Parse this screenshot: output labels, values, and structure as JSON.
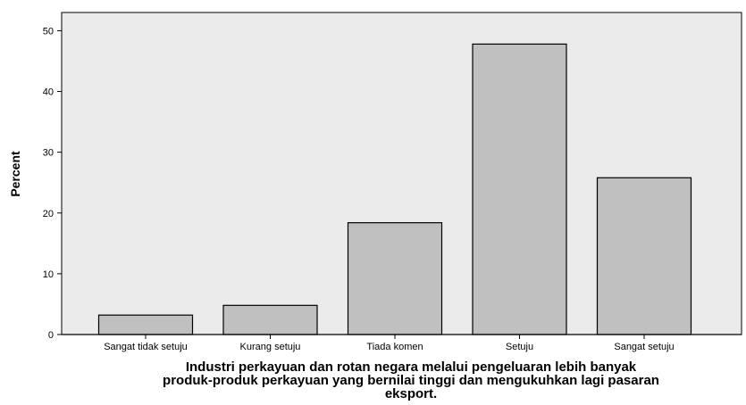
{
  "chart_data": {
    "type": "bar",
    "categories": [
      "Sangat tidak setuju",
      "Kurang setuju",
      "Tiada komen",
      "Setuju",
      "Sangat setuju"
    ],
    "values": [
      3.2,
      4.8,
      18.4,
      47.8,
      25.8
    ],
    "ylabel": "Percent",
    "xlabel_lines": [
      "Industri perkayuan dan rotan negara melalui pengeluaran lebih banyak",
      "produk-produk perkayuan yang bernilai tinggi dan mengukuhkan lagi pasaran",
      "eksport."
    ],
    "ylim": [
      0,
      53
    ],
    "yticks": [
      0,
      10,
      20,
      30,
      40,
      50
    ],
    "ytick_labels": [
      "0",
      "10",
      "20",
      "30",
      "40",
      "50"
    ],
    "grid": false,
    "colors": {
      "plot_background": "#ebebeb",
      "bar_fill": "#c0c0c0",
      "bar_stroke": "#000000"
    }
  }
}
